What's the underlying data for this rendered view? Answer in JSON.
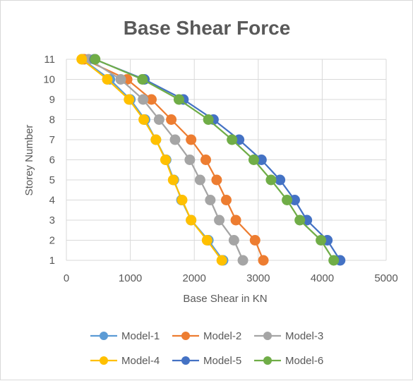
{
  "chart_data": {
    "type": "line",
    "title": "Base Shear Force",
    "xlabel": "Base Shear in KN",
    "ylabel": "Storey Number",
    "xlim": [
      0,
      5000
    ],
    "ylim": [
      1,
      11
    ],
    "xticks": [
      0,
      1000,
      2000,
      3000,
      4000,
      5000
    ],
    "yticks": [
      1,
      2,
      3,
      4,
      5,
      6,
      7,
      8,
      9,
      10,
      11
    ],
    "grid": true,
    "legend_position": "bottom",
    "series": [
      {
        "name": "Model-1",
        "color": "#5b9bd5",
        "x": [
          2450,
          2220,
          1950,
          1800,
          1680,
          1560,
          1400,
          1230,
          1000,
          680,
          250
        ],
        "y": [
          1,
          2,
          3,
          4,
          5,
          6,
          7,
          8,
          9,
          10,
          11
        ]
      },
      {
        "name": "Model-2",
        "color": "#ed7d31",
        "x": [
          3080,
          2950,
          2650,
          2500,
          2350,
          2180,
          1950,
          1640,
          1330,
          950,
          280
        ],
        "y": [
          1,
          2,
          3,
          4,
          5,
          6,
          7,
          8,
          9,
          10,
          11
        ]
      },
      {
        "name": "Model-3",
        "color": "#a5a5a5",
        "x": [
          2760,
          2620,
          2390,
          2250,
          2090,
          1930,
          1700,
          1450,
          1200,
          850,
          350
        ],
        "y": [
          1,
          2,
          3,
          4,
          5,
          6,
          7,
          8,
          9,
          10,
          11
        ]
      },
      {
        "name": "Model-4",
        "color": "#ffc000",
        "x": [
          2430,
          2200,
          1950,
          1810,
          1670,
          1550,
          1400,
          1210,
          980,
          640,
          240
        ],
        "y": [
          1,
          2,
          3,
          4,
          5,
          6,
          7,
          8,
          9,
          10,
          11
        ]
      },
      {
        "name": "Model-5",
        "color": "#4472c4",
        "x": [
          4280,
          4080,
          3760,
          3570,
          3340,
          3050,
          2700,
          2300,
          1830,
          1220,
          440
        ],
        "y": [
          1,
          2,
          3,
          4,
          5,
          6,
          7,
          8,
          9,
          10,
          11
        ]
      },
      {
        "name": "Model-6",
        "color": "#70ad47",
        "x": [
          4180,
          3980,
          3650,
          3450,
          3200,
          2930,
          2590,
          2220,
          1760,
          1190,
          450
        ],
        "y": [
          1,
          2,
          3,
          4,
          5,
          6,
          7,
          8,
          9,
          10,
          11
        ]
      }
    ]
  }
}
